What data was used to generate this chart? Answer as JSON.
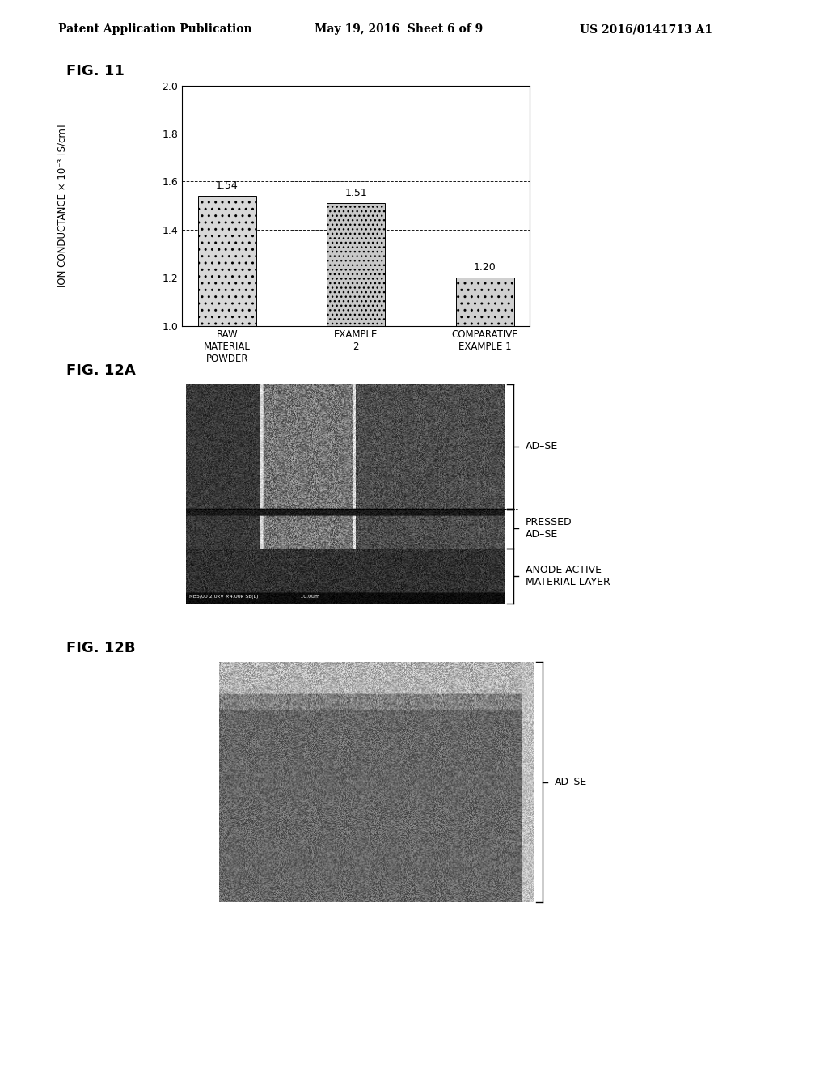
{
  "header_left": "Patent Application Publication",
  "header_mid": "May 19, 2016  Sheet 6 of 9",
  "header_right": "US 2016/0141713 A1",
  "fig11_label": "FIG. 11",
  "fig11_categories": [
    "RAW\nMATERIAL\nPOWDER",
    "EXAMPLE\n2",
    "COMPARATIVE\nEXAMPLE 1"
  ],
  "fig11_values": [
    1.54,
    1.51,
    1.2
  ],
  "fig11_ylabel_line1": "ION CONDUCTANCE",
  "fig11_ylabel_line2": "× 10⁻³ [S/cm]",
  "fig11_ylim": [
    1.0,
    2.0
  ],
  "fig11_yticks": [
    1.0,
    1.2,
    1.4,
    1.6,
    1.8,
    2.0
  ],
  "fig12a_label": "FIG. 12A",
  "fig12a_sem_text": "NB5/00 2.0kV ×4.00k SE(L)                          10.0um",
  "fig12b_label": "FIG. 12B",
  "background_color": "#ffffff",
  "text_color": "#000000",
  "font_size_header": 10,
  "font_size_fig_label": 13,
  "font_size_axis": 9,
  "font_size_bar_label": 9,
  "font_size_annotation": 9
}
